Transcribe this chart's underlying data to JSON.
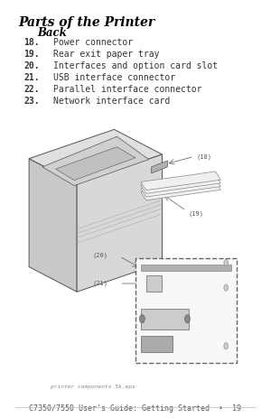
{
  "bg_color": "#ffffff",
  "title": "Parts of the Printer",
  "subtitle": "Back",
  "items": [
    {
      "num": "18.",
      "text": "Power connector"
    },
    {
      "num": "19.",
      "text": "Rear exit paper tray"
    },
    {
      "num": "20.",
      "text": "Interfaces and option card slot"
    },
    {
      "num": "21.",
      "text": "USB interface connector"
    },
    {
      "num": "22.",
      "text": "Parallel interface connector"
    },
    {
      "num": "23.",
      "text": "Network interface card"
    }
  ],
  "footer": "C7350/7550 User's Guide: Getting Started  •  19",
  "title_fontsize": 10,
  "subtitle_fontsize": 8.5,
  "item_fontsize": 7,
  "footer_fontsize": 6,
  "text_color": "#333333",
  "title_color": "#000000"
}
